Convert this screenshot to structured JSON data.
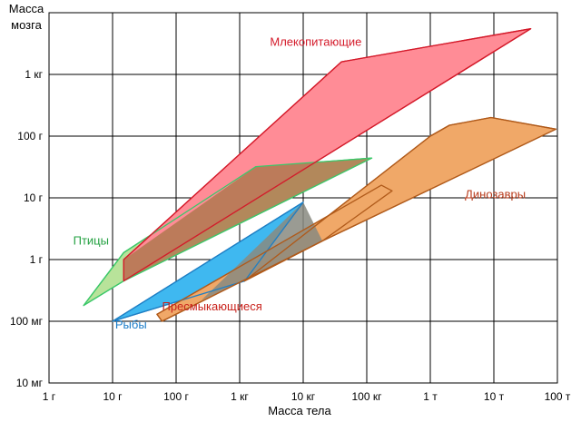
{
  "chart_data": {
    "type": "area",
    "title": "",
    "xlabel": "Масса тела",
    "ylabel": "Масса мозга",
    "ylabel_lines": [
      "Масса",
      "мозга"
    ],
    "x_scale": "log10",
    "y_scale": "log10",
    "x_unit": "грамм",
    "y_unit": "грамм",
    "xlim": [
      1,
      100000000
    ],
    "ylim": [
      0.01,
      10000
    ],
    "grid": true,
    "legend": "none",
    "x_ticks": [
      {
        "value": 1,
        "label": "1 г"
      },
      {
        "value": 10,
        "label": "10 г"
      },
      {
        "value": 100,
        "label": "100 г"
      },
      {
        "value": 1000,
        "label": "1 кг"
      },
      {
        "value": 10000,
        "label": "10 кг"
      },
      {
        "value": 100000,
        "label": "100 кг"
      },
      {
        "value": 1000000,
        "label": "1 т"
      },
      {
        "value": 10000000,
        "label": "10 т"
      },
      {
        "value": 100000000,
        "label": "100 т"
      }
    ],
    "y_ticks": [
      {
        "value": 0.01,
        "label": "10 мг"
      },
      {
        "value": 0.1,
        "label": "100 мг"
      },
      {
        "value": 1,
        "label": "1 г"
      },
      {
        "value": 10,
        "label": "10 г"
      },
      {
        "value": 100,
        "label": "100 г"
      },
      {
        "value": 1000,
        "label": "1 кг"
      }
    ],
    "series": [
      {
        "name": "Рыбы",
        "fill": "#3fb8f0",
        "stroke": "#1f7fc4",
        "points": [
          [
            10,
            0.1
          ],
          [
            10000,
            8.5
          ],
          [
            1200,
            0.45
          ],
          [
            10,
            0.1
          ]
        ]
      },
      {
        "name": "Птицы",
        "fill": "#b8e39a",
        "stroke": "#3cc86a",
        "points": [
          [
            3.5,
            0.18
          ],
          [
            15,
            1.3
          ],
          [
            1800,
            32
          ],
          [
            120000,
            44
          ],
          [
            15,
            0.45
          ],
          [
            3.5,
            0.18
          ]
        ]
      },
      {
        "name": "Млекопитающие",
        "fill": "#ff8c96",
        "stroke": "#d41a2a",
        "points": [
          [
            15,
            0.45
          ],
          [
            15,
            1
          ],
          [
            40000,
            1600
          ],
          [
            38000000,
            5500
          ],
          [
            15,
            0.45
          ]
        ]
      },
      {
        "name": "Пресмыкающиеся",
        "fill": "#f0a868",
        "stroke": "#b05a1a",
        "points": [
          [
            50,
            0.13
          ],
          [
            60,
            0.1
          ],
          [
            20000,
            2
          ],
          [
            250000,
            13
          ],
          [
            170000,
            16
          ],
          [
            50,
            0.13
          ]
        ]
      },
      {
        "name": "Динозавры",
        "fill": "#f0a868",
        "stroke": "#b05a1a",
        "points": [
          [
            1200,
            0.45
          ],
          [
            1000000,
            100
          ],
          [
            2000000,
            150
          ],
          [
            9000000,
            200
          ],
          [
            95000000,
            130
          ],
          [
            20000,
            2
          ],
          [
            1200,
            0.45
          ]
        ]
      }
    ],
    "overlaps": [
      {
        "between": [
          "Рыбы",
          "Птицы"
        ],
        "fill": "#888a80",
        "points": [
          [
            250,
            0.22
          ],
          [
            10000,
            8.5
          ],
          [
            20000,
            2
          ],
          [
            1200,
            0.45
          ],
          [
            250,
            0.22
          ]
        ]
      },
      {
        "between": [
          "Птицы",
          "Млекопитающие"
        ],
        "fill": "#b07850",
        "points": [
          [
            15,
            0.45
          ],
          [
            15,
            1
          ],
          [
            1800,
            32
          ],
          [
            120000,
            44
          ],
          [
            15,
            0.45
          ]
        ]
      }
    ],
    "annotations": [
      {
        "text": "Млекопитающие",
        "color": "#d41a2a",
        "x": 3000,
        "y": 2900
      },
      {
        "text": "Динозавры",
        "color": "#b83a1a",
        "x": 3500000,
        "y": 9.8
      },
      {
        "text": "Пресмыкающиеся",
        "color": "#c8201a",
        "x": 60,
        "y": 0.15
      },
      {
        "text": "Птицы",
        "color": "#22a040",
        "x": 2.4,
        "y": 1.75
      },
      {
        "text": "Рыбы",
        "color": "#1a7cc8",
        "x": 11,
        "y": 0.076
      }
    ]
  }
}
